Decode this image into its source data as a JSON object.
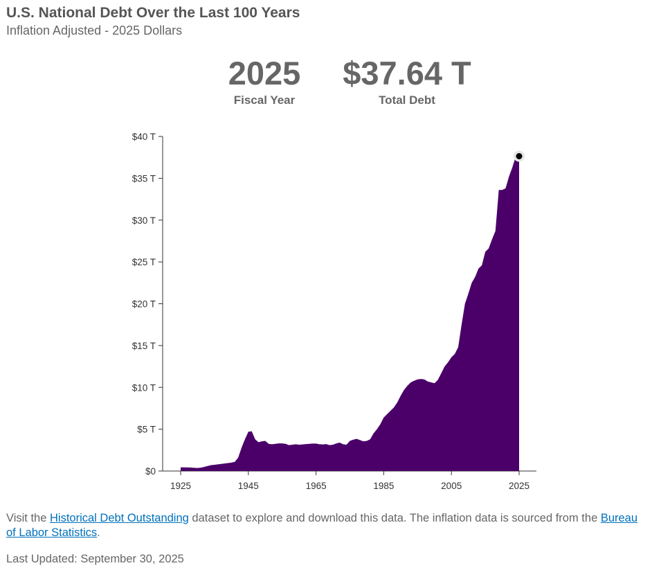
{
  "header": {
    "title": "U.S. National Debt Over the Last 100 Years",
    "subtitle": "Inflation Adjusted - 2025 Dollars"
  },
  "stats": {
    "year_value": "2025",
    "year_label": "Fiscal Year",
    "debt_value": "$37.64 T",
    "debt_label": "Total Debt"
  },
  "footer": {
    "text_before_link1": "Visit the ",
    "link1": "Historical Debt Outstanding",
    "text_middle": " dataset to explore and download this data. The inflation data is sourced from the ",
    "link2": "Bureau of Labor Statistics",
    "text_end": ".",
    "last_updated": "Last Updated: September 30, 2025"
  },
  "colors": {
    "area_fill": "#4b0069",
    "highlight_point": "#000000",
    "link": "#0071bc"
  },
  "chart_data": {
    "type": "area",
    "title": "",
    "xlabel": "",
    "ylabel": "",
    "xlim": [
      1925,
      2025
    ],
    "ylim": [
      0,
      40
    ],
    "x_ticks": [
      1925,
      1945,
      1965,
      1985,
      2005,
      2025
    ],
    "x_tick_labels": [
      "1925",
      "1945",
      "1965",
      "1985",
      "2005",
      "2025"
    ],
    "y_ticks": [
      0,
      5,
      10,
      15,
      20,
      25,
      30,
      35,
      40
    ],
    "y_tick_labels": [
      "$0",
      "$5 T",
      "$10 T",
      "$15 T",
      "$20 T",
      "$25 T",
      "$30 T",
      "$35 T",
      "$40 T"
    ],
    "grid": false,
    "highlight": {
      "x": 2025,
      "y": 37.64
    },
    "series": [
      {
        "x": [
          1925,
          1926,
          1927,
          1928,
          1929,
          1930,
          1931,
          1932,
          1933,
          1934,
          1935,
          1936,
          1937,
          1938,
          1939,
          1940,
          1941,
          1942,
          1943,
          1944,
          1945,
          1946,
          1947,
          1948,
          1949,
          1950,
          1951,
          1952,
          1953,
          1954,
          1955,
          1956,
          1957,
          1958,
          1959,
          1960,
          1961,
          1962,
          1963,
          1964,
          1965,
          1966,
          1967,
          1968,
          1969,
          1970,
          1971,
          1972,
          1973,
          1974,
          1975,
          1976,
          1977,
          1978,
          1979,
          1980,
          1981,
          1982,
          1983,
          1984,
          1985,
          1986,
          1987,
          1988,
          1989,
          1990,
          1991,
          1992,
          1993,
          1994,
          1995,
          1996,
          1997,
          1998,
          1999,
          2000,
          2001,
          2002,
          2003,
          2004,
          2005,
          2006,
          2007,
          2008,
          2009,
          2010,
          2011,
          2012,
          2013,
          2014,
          2015,
          2016,
          2017,
          2018,
          2019,
          2020,
          2021,
          2022,
          2023,
          2024,
          2025
        ],
        "values": [
          0.45,
          0.44,
          0.43,
          0.41,
          0.38,
          0.36,
          0.4,
          0.5,
          0.6,
          0.7,
          0.75,
          0.8,
          0.85,
          0.9,
          0.95,
          1.0,
          1.1,
          1.6,
          2.8,
          3.8,
          4.7,
          4.75,
          3.8,
          3.45,
          3.55,
          3.6,
          3.25,
          3.2,
          3.25,
          3.3,
          3.3,
          3.25,
          3.1,
          3.15,
          3.2,
          3.15,
          3.18,
          3.22,
          3.25,
          3.28,
          3.28,
          3.2,
          3.18,
          3.22,
          3.1,
          3.15,
          3.3,
          3.4,
          3.2,
          3.15,
          3.6,
          3.75,
          3.85,
          3.7,
          3.55,
          3.6,
          3.8,
          4.5,
          5.0,
          5.6,
          6.4,
          6.8,
          7.2,
          7.6,
          8.2,
          9.0,
          9.7,
          10.2,
          10.6,
          10.8,
          10.95,
          11.0,
          10.95,
          10.7,
          10.6,
          10.5,
          10.9,
          11.7,
          12.5,
          13.0,
          13.6,
          14.0,
          14.8,
          17.5,
          20.0,
          21.2,
          22.5,
          23.2,
          24.2,
          24.6,
          26.2,
          26.6,
          27.7,
          28.7,
          33.6,
          33.6,
          33.8,
          35.2,
          36.3,
          37.6,
          37.64
        ]
      }
    ]
  }
}
